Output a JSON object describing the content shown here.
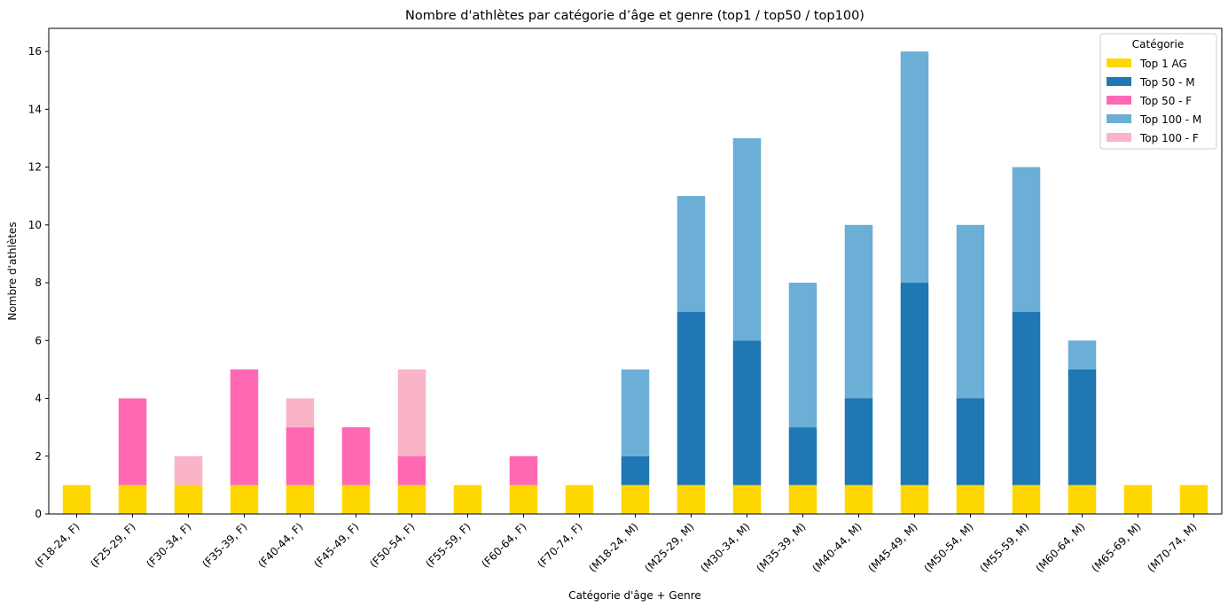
{
  "chart_data": {
    "type": "bar",
    "stacked": true,
    "title": "Nombre d'athlètes par catégorie d’âge et genre (top1 / top50 / top100)",
    "xlabel": "Catégorie d'âge + Genre",
    "ylabel": "Nombre d'athlètes",
    "ylim": [
      0,
      16.8
    ],
    "yticks": [
      0,
      2,
      4,
      6,
      8,
      10,
      12,
      14,
      16
    ],
    "grid": false,
    "categories": [
      "(F18-24, F)",
      "(F25-29, F)",
      "(F30-34, F)",
      "(F35-39, F)",
      "(F40-44, F)",
      "(F45-49, F)",
      "(F50-54, F)",
      "(F55-59, F)",
      "(F60-64, F)",
      "(F70-74, F)",
      "(M18-24, M)",
      "(M25-29, M)",
      "(M30-34, M)",
      "(M35-39, M)",
      "(M40-44, M)",
      "(M45-49, M)",
      "(M50-54, M)",
      "(M55-59, M)",
      "(M60-64, M)",
      "(M65-69, M)",
      "(M70-74, M)"
    ],
    "series": [
      {
        "name": "Top 1 AG",
        "color": "#FFD700",
        "values": [
          1,
          1,
          1,
          1,
          1,
          1,
          1,
          1,
          1,
          1,
          1,
          1,
          1,
          1,
          1,
          1,
          1,
          1,
          1,
          1,
          1
        ]
      },
      {
        "name": "Top 50 - M",
        "color": "#1F77B4",
        "values": [
          0,
          0,
          0,
          0,
          0,
          0,
          0,
          0,
          0,
          0,
          1,
          6,
          5,
          2,
          3,
          7,
          3,
          6,
          4,
          0,
          0
        ]
      },
      {
        "name": "Top 50 - F",
        "color": "#FF69B4",
        "values": [
          0,
          3,
          0,
          4,
          2,
          2,
          1,
          0,
          1,
          0,
          0,
          0,
          0,
          0,
          0,
          0,
          0,
          0,
          0,
          0,
          0
        ]
      },
      {
        "name": "Top 100 - M",
        "color": "#6BAED6",
        "values": [
          0,
          0,
          0,
          0,
          0,
          0,
          0,
          0,
          0,
          0,
          3,
          4,
          7,
          5,
          6,
          8,
          6,
          5,
          1,
          0,
          0
        ]
      },
      {
        "name": "Top 100 - F",
        "color": "#F9B4C8",
        "values": [
          0,
          0,
          1,
          0,
          1,
          0,
          3,
          0,
          0,
          0,
          0,
          0,
          0,
          0,
          0,
          0,
          0,
          0,
          0,
          0,
          0
        ]
      }
    ],
    "legend": {
      "title": "Catégorie",
      "position": "top-right"
    }
  }
}
